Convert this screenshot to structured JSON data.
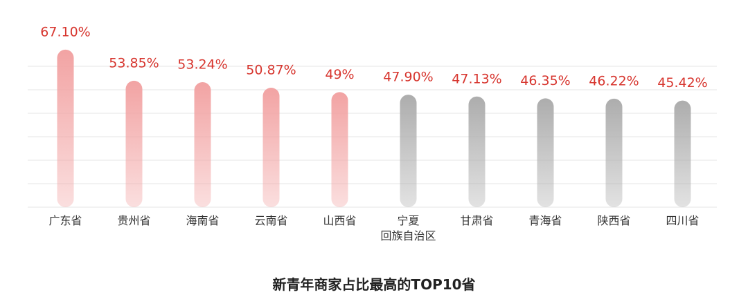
{
  "chart_data": {
    "type": "bar",
    "title": "新青年商家占比最高的TOP10省",
    "categories": [
      "广东省",
      "贵州省",
      "海南省",
      "云南省",
      "山西省",
      "宁夏\n回族自治区",
      "甘肃省",
      "青海省",
      "陕西省",
      "四川省"
    ],
    "values": [
      67.1,
      53.85,
      53.24,
      50.87,
      49,
      47.9,
      47.13,
      46.35,
      46.22,
      45.42
    ],
    "value_labels": [
      "67.10%",
      "53.85%",
      "53.24%",
      "50.87%",
      "49%",
      "47.90%",
      "47.13%",
      "46.35%",
      "46.22%",
      "45.42%"
    ],
    "colors": [
      "#f2a3a3",
      "#f2a3a3",
      "#f2a3a3",
      "#f2a3a3",
      "#f2a3a3",
      "#adadad",
      "#adadad",
      "#adadad",
      "#adadad",
      "#adadad"
    ],
    "label_color": "#d7352e",
    "ylim": [
      0,
      70
    ],
    "yticks": [
      0,
      10,
      20,
      30,
      40,
      50,
      60
    ],
    "grid": true
  }
}
